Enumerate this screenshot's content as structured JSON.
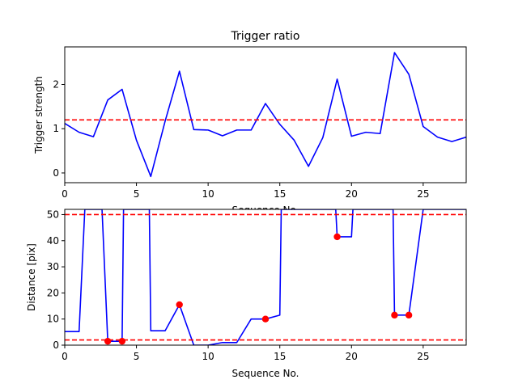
{
  "chart_data": [
    {
      "type": "line",
      "title": "Trigger ratio",
      "xlabel": "Sequence No.",
      "ylabel": "Trigger strength",
      "xlim": [
        0,
        28
      ],
      "ylim": [
        -0.22,
        2.85
      ],
      "xticks": [
        0,
        5,
        10,
        15,
        20,
        25
      ],
      "yticks": [
        0,
        1,
        2
      ],
      "grid": false,
      "series": [
        {
          "style": "solid",
          "color": "#0000ff",
          "x": [
            0,
            1,
            2,
            3,
            4,
            5,
            6,
            7,
            8,
            9,
            10,
            11,
            12,
            13,
            14,
            15,
            16,
            17,
            18,
            19,
            20,
            21,
            22,
            23,
            24,
            25,
            26,
            27,
            28
          ],
          "y": [
            1.12,
            0.92,
            0.82,
            1.65,
            1.89,
            0.74,
            -0.08,
            1.17,
            2.3,
            0.98,
            0.97,
            0.84,
            0.97,
            0.97,
            1.57,
            1.1,
            0.74,
            0.15,
            0.8,
            2.12,
            0.83,
            0.92,
            0.89,
            2.72,
            2.23,
            1.05,
            0.81,
            0.71,
            0.81
          ]
        }
      ],
      "reference_lines": [
        {
          "y": 1.2,
          "color": "#ff0000",
          "style": "dashed"
        }
      ]
    },
    {
      "type": "line",
      "title": "",
      "xlabel": "Sequence No.",
      "ylabel": "Distance [pix]",
      "xlim": [
        0,
        28
      ],
      "ylim": [
        0,
        52
      ],
      "xticks": [
        0,
        5,
        10,
        15,
        20,
        25
      ],
      "yticks": [
        0,
        10,
        20,
        30,
        40,
        50
      ],
      "grid": false,
      "series": [
        {
          "style": "solid",
          "color": "#0000ff",
          "x": [
            0,
            1,
            1.4,
            2.6,
            3,
            4,
            4.1,
            5.9,
            6,
            7,
            8,
            9,
            10,
            11,
            12,
            13,
            14,
            15,
            15.1,
            18.9,
            19,
            20,
            20.1,
            22.9,
            23,
            24,
            25,
            28
          ],
          "y": [
            5.2,
            5.2,
            52,
            52,
            1.5,
            1.5,
            52,
            52,
            5.5,
            5.5,
            15.5,
            0,
            0,
            1,
            1,
            10,
            10,
            11.5,
            52,
            52,
            41.5,
            41.5,
            52,
            52,
            11.5,
            11.5,
            52,
            52
          ]
        },
        {
          "style": "markers",
          "color": "#ff0000",
          "x": [
            3,
            4,
            8,
            14,
            19,
            23,
            24
          ],
          "y": [
            1.5,
            1.5,
            15.5,
            10,
            41.5,
            11.5,
            11.5
          ]
        }
      ],
      "reference_lines": [
        {
          "y": 50,
          "color": "#ff0000",
          "style": "dashed"
        },
        {
          "y": 2,
          "color": "#ff0000",
          "style": "dashed"
        }
      ]
    }
  ]
}
